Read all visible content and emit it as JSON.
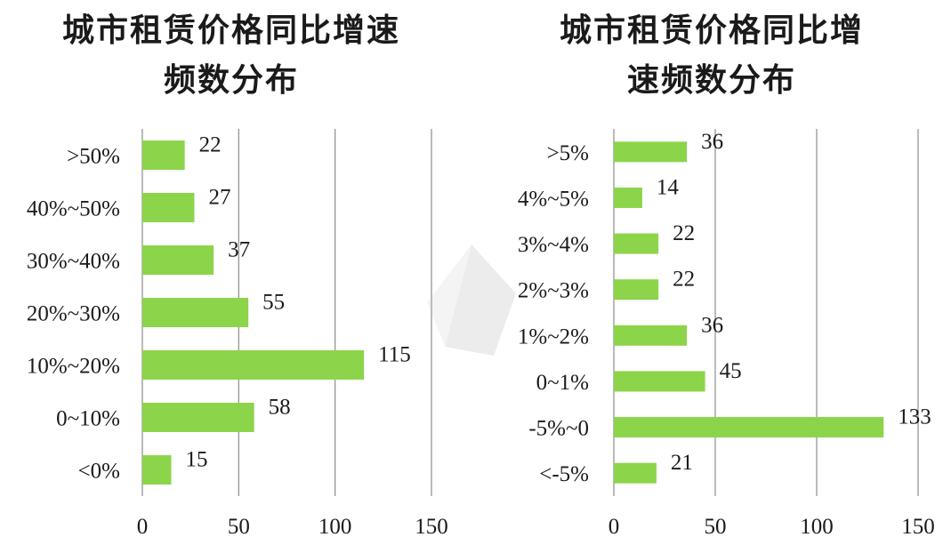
{
  "chart_data": [
    {
      "type": "bar",
      "orientation": "horizontal",
      "title": "城市租赁价格同比增速频数分布",
      "title_lines": [
        "城市租赁价格同比增速",
        "频数分布"
      ],
      "categories": [
        ">50%",
        "40%~50%",
        "30%~40%",
        "20%~30%",
        "10%~20%",
        "0~10%",
        "<0%"
      ],
      "values": [
        22,
        27,
        37,
        55,
        115,
        58,
        15
      ],
      "xlim": [
        0,
        150
      ],
      "xticks": [
        0,
        50,
        100,
        150
      ],
      "grid": true,
      "color": "#8cd44a"
    },
    {
      "type": "bar",
      "orientation": "horizontal",
      "title": "城市租赁价格同比增速频数分布",
      "title_lines": [
        "城市租赁价格同比增",
        "速频数分布"
      ],
      "categories": [
        ">5%",
        "4%~5%",
        "3%~4%",
        "2%~3%",
        "1%~2%",
        "0~1%",
        "-5%~0",
        "<-5%"
      ],
      "values": [
        36,
        14,
        22,
        22,
        36,
        45,
        133,
        21
      ],
      "xlim": [
        0,
        150
      ],
      "xticks": [
        0,
        50,
        100,
        150
      ],
      "grid": true,
      "color": "#8cd44a"
    }
  ]
}
